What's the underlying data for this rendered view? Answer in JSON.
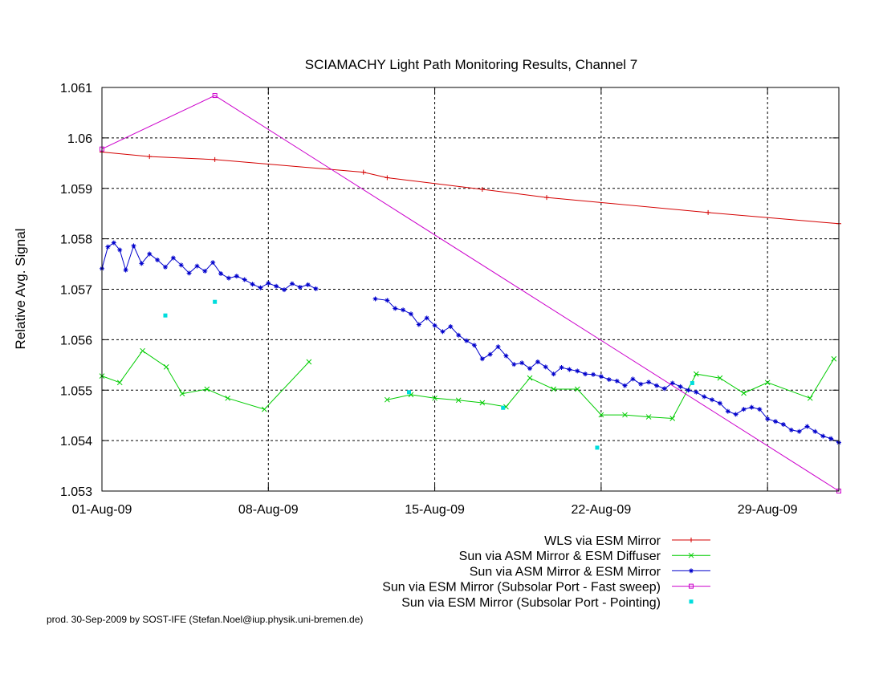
{
  "chart_data": {
    "type": "line",
    "title": "SCIAMACHY Light Path Monitoring Results, Channel 7",
    "ylabel": "Relative Avg. Signal",
    "xlabel": "",
    "xlim": [
      "2009-08-01",
      "2009-09-01"
    ],
    "ylim": [
      1.053,
      1.061
    ],
    "x_ticks": [
      {
        "label": "01-Aug-09",
        "date": "2009-08-01"
      },
      {
        "label": "08-Aug-09",
        "date": "2009-08-08"
      },
      {
        "label": "15-Aug-09",
        "date": "2009-08-15"
      },
      {
        "label": "22-Aug-09",
        "date": "2009-08-22"
      },
      {
        "label": "29-Aug-09",
        "date": "2009-08-29"
      }
    ],
    "y_ticks": [
      {
        "label": "1.053",
        "value": 1.053
      },
      {
        "label": "1.054",
        "value": 1.054
      },
      {
        "label": "1.055",
        "value": 1.055
      },
      {
        "label": "1.056",
        "value": 1.056
      },
      {
        "label": "1.057",
        "value": 1.057
      },
      {
        "label": "1.058",
        "value": 1.058
      },
      {
        "label": "1.059",
        "value": 1.059
      },
      {
        "label": "1.06",
        "value": 1.06
      },
      {
        "label": "1.061",
        "value": 1.061
      }
    ],
    "grid": true,
    "legend_position": "bottom-right",
    "series": [
      {
        "name": "WLS via ESM Mirror",
        "color": "#d40000",
        "marker": "plus",
        "points": [
          [
            "2009-08-01 00:00",
            1.05972
          ],
          [
            "2009-08-03 00:00",
            1.05963
          ],
          [
            "2009-08-05 18:00",
            1.05957
          ],
          [
            "2009-08-12 00:00",
            1.05932
          ],
          [
            "2009-08-13 00:00",
            1.05921
          ],
          [
            "2009-08-17 00:00",
            1.05898
          ],
          [
            "2009-08-19 17:00",
            1.05882
          ],
          [
            "2009-08-26 12:00",
            1.05852
          ],
          [
            "2009-09-01 00:00",
            1.0583
          ]
        ]
      },
      {
        "name": "Sun via ASM Mirror & ESM Diffuser",
        "color": "#00cc00",
        "marker": "cross",
        "segments": [
          [
            [
              "2009-08-01 00:00",
              1.05528
            ],
            [
              "2009-08-01 18:00",
              1.05515
            ],
            [
              "2009-08-02 17:00",
              1.05578
            ],
            [
              "2009-08-03 17:00",
              1.05546
            ],
            [
              "2009-08-04 09:00",
              1.05493
            ],
            [
              "2009-08-05 10:00",
              1.05502
            ],
            [
              "2009-08-06 07:00",
              1.05484
            ],
            [
              "2009-08-07 20:00",
              1.05462
            ],
            [
              "2009-08-09 17:00",
              1.05556
            ]
          ],
          [
            [
              "2009-08-13 00:00",
              1.05481
            ],
            [
              "2009-08-14 00:00",
              1.05491
            ],
            [
              "2009-08-15 00:00",
              1.05484
            ],
            [
              "2009-08-16 00:00",
              1.0548
            ],
            [
              "2009-08-17 00:00",
              1.05475
            ],
            [
              "2009-08-18 00:00",
              1.05467
            ],
            [
              "2009-08-19 00:00",
              1.05524
            ],
            [
              "2009-08-20 00:00",
              1.05502
            ],
            [
              "2009-08-21 00:00",
              1.05502
            ],
            [
              "2009-08-22 00:00",
              1.05451
            ],
            [
              "2009-08-23 00:00",
              1.05451
            ],
            [
              "2009-08-24 00:00",
              1.05447
            ],
            [
              "2009-08-25 00:00",
              1.05444
            ],
            [
              "2009-08-26 00:00",
              1.05532
            ],
            [
              "2009-08-27 00:00",
              1.05524
            ],
            [
              "2009-08-28 00:00",
              1.05494
            ],
            [
              "2009-08-29 00:00",
              1.05515
            ],
            [
              "2009-08-30 19:00",
              1.05484
            ],
            [
              "2009-08-31 19:00",
              1.05562
            ]
          ]
        ]
      },
      {
        "name": "Sun via ASM Mirror & ESM Mirror",
        "color": "#0000cc",
        "marker": "star",
        "segments": [
          [
            [
              "2009-08-01 00:00",
              1.05741
            ],
            [
              "2009-08-01 06:00",
              1.05784
            ],
            [
              "2009-08-01 12:00",
              1.05792
            ],
            [
              "2009-08-01 18:00",
              1.05778
            ],
            [
              "2009-08-02 00:00",
              1.05738
            ],
            [
              "2009-08-02 08:00",
              1.05786
            ],
            [
              "2009-08-02 16:00",
              1.05751
            ],
            [
              "2009-08-03 00:00",
              1.0577
            ],
            [
              "2009-08-03 08:00",
              1.05758
            ],
            [
              "2009-08-03 16:00",
              1.05744
            ],
            [
              "2009-08-04 00:00",
              1.05762
            ],
            [
              "2009-08-04 08:00",
              1.05748
            ],
            [
              "2009-08-04 16:00",
              1.05732
            ],
            [
              "2009-08-05 00:00",
              1.05746
            ],
            [
              "2009-08-05 08:00",
              1.05736
            ],
            [
              "2009-08-05 16:00",
              1.05753
            ],
            [
              "2009-08-06 00:00",
              1.05731
            ],
            [
              "2009-08-06 08:00",
              1.05722
            ],
            [
              "2009-08-06 16:00",
              1.05726
            ],
            [
              "2009-08-07 00:00",
              1.05719
            ],
            [
              "2009-08-07 08:00",
              1.0571
            ],
            [
              "2009-08-07 16:00",
              1.05703
            ],
            [
              "2009-08-08 00:00",
              1.05712
            ],
            [
              "2009-08-08 08:00",
              1.05706
            ],
            [
              "2009-08-08 16:00",
              1.05699
            ],
            [
              "2009-08-09 00:00",
              1.05711
            ],
            [
              "2009-08-09 08:00",
              1.05704
            ],
            [
              "2009-08-09 16:00",
              1.05709
            ],
            [
              "2009-08-10 00:00",
              1.05701
            ]
          ],
          [
            [
              "2009-08-12 12:00",
              1.05681
            ],
            [
              "2009-08-13 00:00",
              1.05678
            ],
            [
              "2009-08-13 08:00",
              1.05662
            ],
            [
              "2009-08-13 16:00",
              1.05659
            ],
            [
              "2009-08-14 00:00",
              1.05651
            ],
            [
              "2009-08-14 08:00",
              1.0563
            ],
            [
              "2009-08-14 16:00",
              1.05643
            ],
            [
              "2009-08-15 00:00",
              1.05628
            ],
            [
              "2009-08-15 08:00",
              1.05616
            ],
            [
              "2009-08-15 16:00",
              1.05626
            ],
            [
              "2009-08-16 00:00",
              1.05609
            ],
            [
              "2009-08-16 08:00",
              1.05598
            ],
            [
              "2009-08-16 16:00",
              1.05589
            ],
            [
              "2009-08-17 00:00",
              1.05562
            ],
            [
              "2009-08-17 08:00",
              1.05571
            ],
            [
              "2009-08-17 16:00",
              1.05586
            ],
            [
              "2009-08-18 00:00",
              1.05568
            ],
            [
              "2009-08-18 08:00",
              1.05551
            ],
            [
              "2009-08-18 16:00",
              1.05554
            ],
            [
              "2009-08-19 00:00",
              1.05543
            ],
            [
              "2009-08-19 08:00",
              1.05556
            ],
            [
              "2009-08-19 16:00",
              1.05546
            ],
            [
              "2009-08-20 00:00",
              1.05532
            ],
            [
              "2009-08-20 08:00",
              1.05545
            ],
            [
              "2009-08-20 16:00",
              1.05541
            ],
            [
              "2009-08-21 00:00",
              1.05538
            ],
            [
              "2009-08-21 08:00",
              1.05532
            ],
            [
              "2009-08-21 16:00",
              1.05531
            ],
            [
              "2009-08-22 00:00",
              1.05527
            ],
            [
              "2009-08-22 08:00",
              1.05521
            ],
            [
              "2009-08-22 16:00",
              1.05518
            ],
            [
              "2009-08-23 00:00",
              1.05509
            ],
            [
              "2009-08-23 08:00",
              1.05522
            ],
            [
              "2009-08-23 16:00",
              1.05512
            ],
            [
              "2009-08-24 00:00",
              1.05516
            ],
            [
              "2009-08-24 08:00",
              1.05509
            ],
            [
              "2009-08-24 16:00",
              1.05503
            ],
            [
              "2009-08-25 00:00",
              1.05514
            ],
            [
              "2009-08-25 08:00",
              1.05507
            ],
            [
              "2009-08-25 16:00",
              1.055
            ],
            [
              "2009-08-26 00:00",
              1.05496
            ],
            [
              "2009-08-26 08:00",
              1.05487
            ],
            [
              "2009-08-26 16:00",
              1.05481
            ],
            [
              "2009-08-27 00:00",
              1.05474
            ],
            [
              "2009-08-27 08:00",
              1.05458
            ],
            [
              "2009-08-27 16:00",
              1.05452
            ],
            [
              "2009-08-28 00:00",
              1.05462
            ],
            [
              "2009-08-28 08:00",
              1.05466
            ],
            [
              "2009-08-28 16:00",
              1.05462
            ],
            [
              "2009-08-29 00:00",
              1.05443
            ],
            [
              "2009-08-29 08:00",
              1.05438
            ],
            [
              "2009-08-29 16:00",
              1.05432
            ],
            [
              "2009-08-30 00:00",
              1.05421
            ],
            [
              "2009-08-30 08:00",
              1.05418
            ],
            [
              "2009-08-30 16:00",
              1.05428
            ],
            [
              "2009-08-31 00:00",
              1.05418
            ],
            [
              "2009-08-31 08:00",
              1.05409
            ],
            [
              "2009-08-31 16:00",
              1.05404
            ],
            [
              "2009-09-01 00:00",
              1.05396
            ]
          ]
        ]
      },
      {
        "name": "Sun via ESM Mirror (Subsolar Port - Fast sweep)",
        "color": "#cc00cc",
        "marker": "open-square",
        "points": [
          [
            "2009-08-01 00:00",
            1.05978
          ],
          [
            "2009-08-05 18:00",
            1.06084
          ],
          [
            "2009-09-01 00:00",
            1.053
          ]
        ]
      },
      {
        "name": "Sun via ESM Mirror (Subsolar Port - Pointing)",
        "color": "#00dddd",
        "marker": "filled-square",
        "points_only": true,
        "points": [
          [
            "2009-08-03 16:00",
            1.05648
          ],
          [
            "2009-08-05 18:00",
            1.05675
          ],
          [
            "2009-08-13 22:00",
            1.05496
          ],
          [
            "2009-08-17 21:00",
            1.05465
          ],
          [
            "2009-08-21 20:00",
            1.05386
          ],
          [
            "2009-08-25 20:00",
            1.05514
          ]
        ]
      }
    ]
  },
  "footer_credit": "prod. 30-Sep-2009 by SOST-IFE (Stefan.Noel@iup.physik.uni-bremen.de)"
}
